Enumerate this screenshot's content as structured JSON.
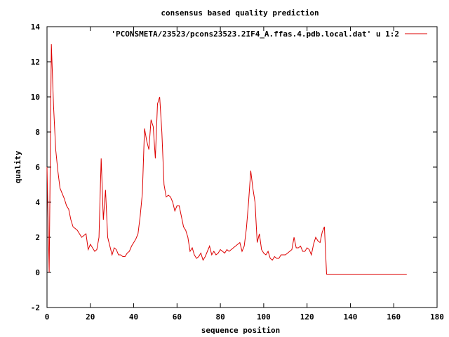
{
  "chart_data": {
    "type": "line",
    "title": "consensus based quality prediction",
    "xlabel": "sequence position",
    "ylabel": "quality",
    "xlim": [
      0,
      180
    ],
    "ylim": [
      -2,
      14
    ],
    "xticks": [
      "0",
      "20",
      "40",
      "60",
      "80",
      "100",
      "120",
      "140",
      "160",
      "180"
    ],
    "yticks": [
      "-2",
      "0",
      "2",
      "4",
      "6",
      "8",
      "10",
      "12",
      "14"
    ],
    "grid": false,
    "legend_position": "top-right",
    "series": [
      {
        "name": "'PCONSMETA/23523/pcons23523.2IF4_A.ffas.4.pdb.local.dat' u 1:2",
        "color": "#dd0000",
        "x": [
          0,
          1,
          2,
          3,
          4,
          5,
          6,
          7,
          8,
          9,
          10,
          11,
          12,
          13,
          14,
          15,
          16,
          17,
          18,
          19,
          20,
          21,
          22,
          23,
          24,
          25,
          26,
          27,
          28,
          29,
          30,
          31,
          32,
          33,
          34,
          35,
          36,
          37,
          38,
          39,
          40,
          41,
          42,
          43,
          44,
          45,
          46,
          47,
          48,
          49,
          50,
          51,
          52,
          53,
          54,
          55,
          56,
          57,
          58,
          59,
          60,
          61,
          62,
          63,
          64,
          65,
          66,
          67,
          68,
          69,
          70,
          71,
          72,
          73,
          74,
          75,
          76,
          77,
          78,
          79,
          80,
          81,
          82,
          83,
          84,
          85,
          86,
          87,
          88,
          89,
          90,
          91,
          92,
          93,
          94,
          95,
          96,
          97,
          98,
          99,
          100,
          101,
          102,
          103,
          104,
          105,
          106,
          107,
          108,
          109,
          110,
          111,
          112,
          113,
          114,
          115,
          116,
          117,
          118,
          119,
          120,
          121,
          122,
          123,
          124,
          125,
          126,
          127,
          128,
          129,
          130,
          131,
          132,
          133,
          134,
          135,
          136,
          137,
          138,
          139,
          140,
          141,
          142,
          143,
          144,
          145,
          146,
          147,
          148,
          149,
          150,
          151,
          152,
          153,
          154,
          155,
          156,
          157,
          158,
          159,
          160,
          161,
          162,
          163,
          164,
          165,
          166
        ],
        "y": [
          6.0,
          0.0,
          13.0,
          9.5,
          7.0,
          5.8,
          4.8,
          4.5,
          4.2,
          3.8,
          3.6,
          3.0,
          2.6,
          2.5,
          2.4,
          2.2,
          2.0,
          2.1,
          2.2,
          1.3,
          1.6,
          1.4,
          1.2,
          1.3,
          2.0,
          6.5,
          3.0,
          4.7,
          2.0,
          1.5,
          1.0,
          1.4,
          1.3,
          1.0,
          1.0,
          0.9,
          0.9,
          1.1,
          1.2,
          1.5,
          1.7,
          1.9,
          2.2,
          3.2,
          4.5,
          8.2,
          7.5,
          7.0,
          8.7,
          8.3,
          6.5,
          9.6,
          10.0,
          8.0,
          5.0,
          4.3,
          4.4,
          4.3,
          4.0,
          3.5,
          3.8,
          3.8,
          3.2,
          2.6,
          2.4,
          2.0,
          1.2,
          1.4,
          1.0,
          0.8,
          0.9,
          1.1,
          0.7,
          0.9,
          1.2,
          1.5,
          1.0,
          1.2,
          1.0,
          1.1,
          1.3,
          1.2,
          1.1,
          1.3,
          1.2,
          1.3,
          1.4,
          1.5,
          1.6,
          1.7,
          1.2,
          1.5,
          2.5,
          4.0,
          5.8,
          4.8,
          4.0,
          1.7,
          2.2,
          1.3,
          1.1,
          1.0,
          1.2,
          0.8,
          0.7,
          0.9,
          0.8,
          0.8,
          1.0,
          1.0,
          1.0,
          1.1,
          1.2,
          1.3,
          2.0,
          1.4,
          1.4,
          1.5,
          1.2,
          1.2,
          1.4,
          1.3,
          1.0,
          1.6,
          2.0,
          1.8,
          1.7,
          2.3,
          2.6,
          -0.1,
          -0.1,
          -0.1,
          -0.1,
          -0.1,
          -0.1,
          -0.1,
          -0.1,
          -0.1,
          -0.1,
          -0.1,
          -0.1,
          -0.1,
          -0.1,
          -0.1,
          -0.1,
          -0.1,
          -0.1,
          -0.1,
          -0.1,
          -0.1,
          -0.1,
          -0.1,
          -0.1,
          -0.1,
          -0.1,
          -0.1,
          -0.1,
          -0.1,
          -0.1,
          -0.1,
          -0.1,
          -0.1,
          -0.1,
          -0.1,
          -0.1,
          -0.1,
          -0.1
        ]
      }
    ]
  }
}
